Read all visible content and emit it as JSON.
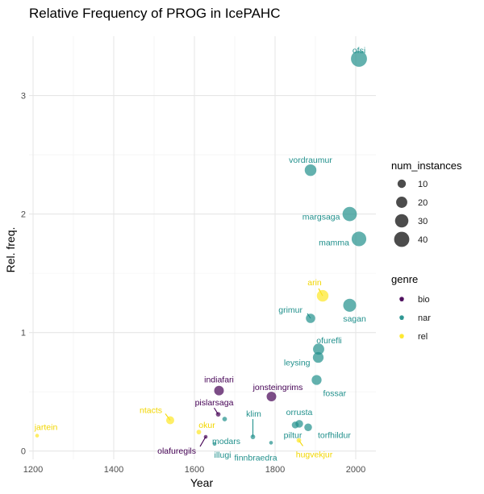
{
  "chart_data": {
    "type": "scatter",
    "title": "Relative Frequency of PROG in IcePAHC",
    "xlabel": "Year",
    "ylabel": "Rel. freq.",
    "xlim": [
      1190,
      2050
    ],
    "ylim": [
      -0.07,
      3.5
    ],
    "x_ticks": [
      1200,
      1400,
      1600,
      1800,
      2000
    ],
    "y_ticks": [
      0,
      1,
      2,
      3
    ],
    "grid": true,
    "genre_colors": {
      "bio": "#440154",
      "nar": "#21908C",
      "rel": "#FDE725"
    },
    "size_legend": {
      "title": "num_instances",
      "values": [
        10,
        20,
        30,
        40
      ]
    },
    "color_legend": {
      "title": "genre",
      "entries": [
        "bio",
        "nar",
        "rel"
      ]
    },
    "points": [
      {
        "label": "ofsi",
        "year": 2008,
        "freq": 3.31,
        "n": 45,
        "genre": "nar"
      },
      {
        "label": "vordraumur",
        "year": 1888,
        "freq": 2.37,
        "n": 22,
        "genre": "nar"
      },
      {
        "label": "margsaga",
        "year": 1985,
        "freq": 2.0,
        "n": 35,
        "genre": "nar"
      },
      {
        "label": "mamma",
        "year": 2008,
        "freq": 1.79,
        "n": 37,
        "genre": "nar"
      },
      {
        "label": "arin",
        "year": 1918,
        "freq": 1.31,
        "n": 22,
        "genre": "rel"
      },
      {
        "label": "grimur",
        "year": 1888,
        "freq": 1.12,
        "n": 13,
        "genre": "nar"
      },
      {
        "label": "sagan",
        "year": 1985,
        "freq": 1.23,
        "n": 28,
        "genre": "nar"
      },
      {
        "label": "ofurefli",
        "year": 1908,
        "freq": 0.86,
        "n": 20,
        "genre": "nar"
      },
      {
        "label": "leysing",
        "year": 1907,
        "freq": 0.79,
        "n": 18,
        "genre": "nar"
      },
      {
        "label": "fossar",
        "year": 1903,
        "freq": 0.6,
        "n": 15,
        "genre": "nar"
      },
      {
        "label": "indiafari",
        "year": 1661,
        "freq": 0.51,
        "n": 14,
        "genre": "bio"
      },
      {
        "label": "jonsteingrims",
        "year": 1791,
        "freq": 0.46,
        "n": 14,
        "genre": "bio"
      },
      {
        "label": "pislarsaga",
        "year": 1659,
        "freq": 0.31,
        "n": 2,
        "genre": "bio"
      },
      {
        "label": "ntacts",
        "year": 1540,
        "freq": 0.26,
        "n": 9,
        "genre": "rel"
      },
      {
        "label": "okur",
        "year": 1611,
        "freq": 0.16,
        "n": 2,
        "genre": "rel"
      },
      {
        "label": "modars",
        "year": 1675,
        "freq": 0.27,
        "n": 2,
        "genre": "nar"
      },
      {
        "label": "klim",
        "year": 1745,
        "freq": 0.12,
        "n": 2,
        "genre": "nar"
      },
      {
        "label": "orrusta",
        "year": 1860,
        "freq": 0.23,
        "n": 8,
        "genre": "nar"
      },
      {
        "label": "piltur",
        "year": 1850,
        "freq": 0.22,
        "n": 6,
        "genre": "nar"
      },
      {
        "label": "torfhildur",
        "year": 1882,
        "freq": 0.2,
        "n": 8,
        "genre": "nar"
      },
      {
        "label": "jartein",
        "year": 1210,
        "freq": 0.13,
        "n": 1,
        "genre": "rel"
      },
      {
        "label": "olafuregils",
        "year": 1628,
        "freq": 0.12,
        "n": 1,
        "genre": "bio"
      },
      {
        "label": "illugi",
        "year": 1650,
        "freq": 0.06,
        "n": 1,
        "genre": "nar"
      },
      {
        "label": "finnbraedra",
        "year": 1790,
        "freq": 0.07,
        "n": 1,
        "genre": "nar"
      },
      {
        "label": "hugvekjur",
        "year": 1859,
        "freq": 0.09,
        "n": 2,
        "genre": "rel"
      }
    ]
  }
}
